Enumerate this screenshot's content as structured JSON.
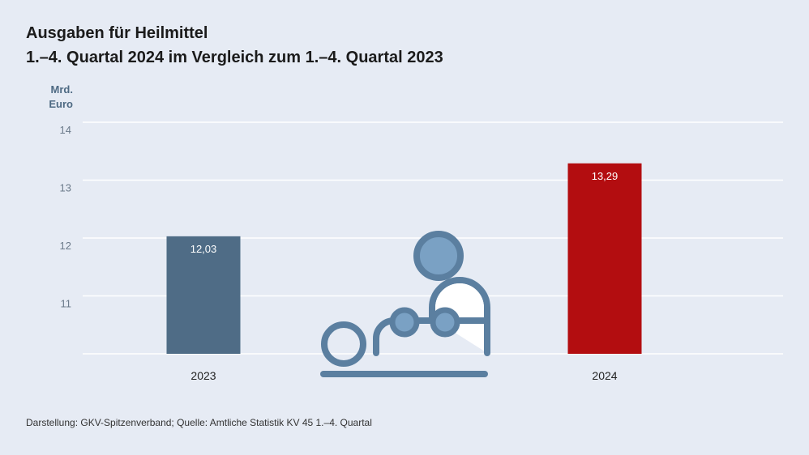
{
  "chart_data": {
    "type": "bar",
    "title": "Ausgaben für Heilmittel",
    "subtitle": "1.–4. Quartal 2024 im Vergleich zum 1.–4. Quartal 2023",
    "ylabel_line1": "Mrd.",
    "ylabel_line2": "Euro",
    "categories": [
      "2023",
      "2024"
    ],
    "values": [
      12.03,
      13.29
    ],
    "value_labels": [
      "12,03",
      "13,29"
    ],
    "colors": [
      "#4f6c86",
      "#b30d10"
    ],
    "ylim": [
      10,
      14
    ],
    "yticks": [
      {
        "v": 11,
        "label": "11"
      },
      {
        "v": 12,
        "label": "12"
      },
      {
        "v": 13,
        "label": "13"
      },
      {
        "v": 14,
        "label": "14"
      }
    ],
    "grid": true,
    "source": "Darstellung: GKV-Spitzenverband; Quelle: Amtliche Statistik KV 45 1.–4. Quartal"
  },
  "illustration": {
    "icon": "physiotherapy-massage-icon",
    "color": "#5b7fa0",
    "fill": "#7aa1c4"
  }
}
